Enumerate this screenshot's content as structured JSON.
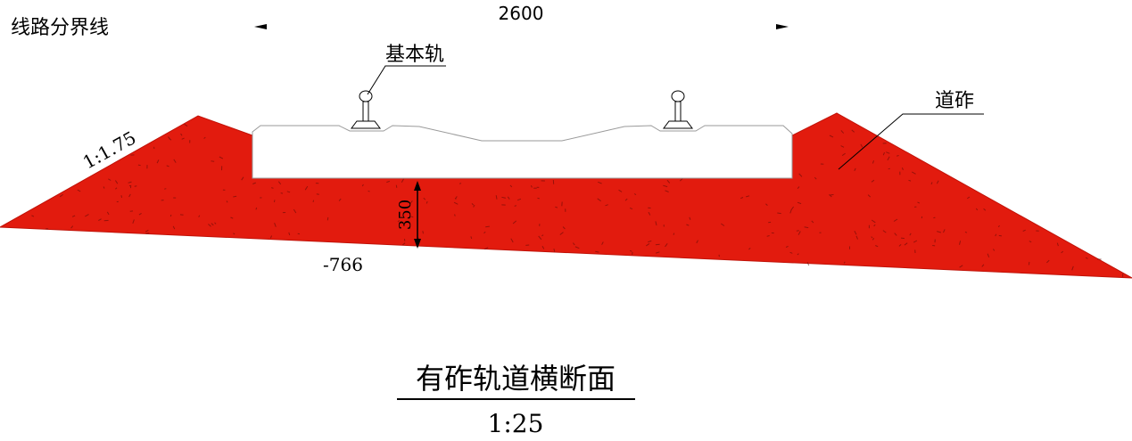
{
  "labels": {
    "boundary_line": "线路分界线",
    "width_dim": "2600",
    "base_rail": "基本轨",
    "ballast": "道砟",
    "slope": "1:1.75",
    "depth_dim": "350",
    "elevation": "-766",
    "title": "有砟轨道横断面",
    "scale": "1:25"
  },
  "colors": {
    "ballast_fill": "#e21b0e",
    "line": "#000000",
    "background": "#ffffff"
  }
}
